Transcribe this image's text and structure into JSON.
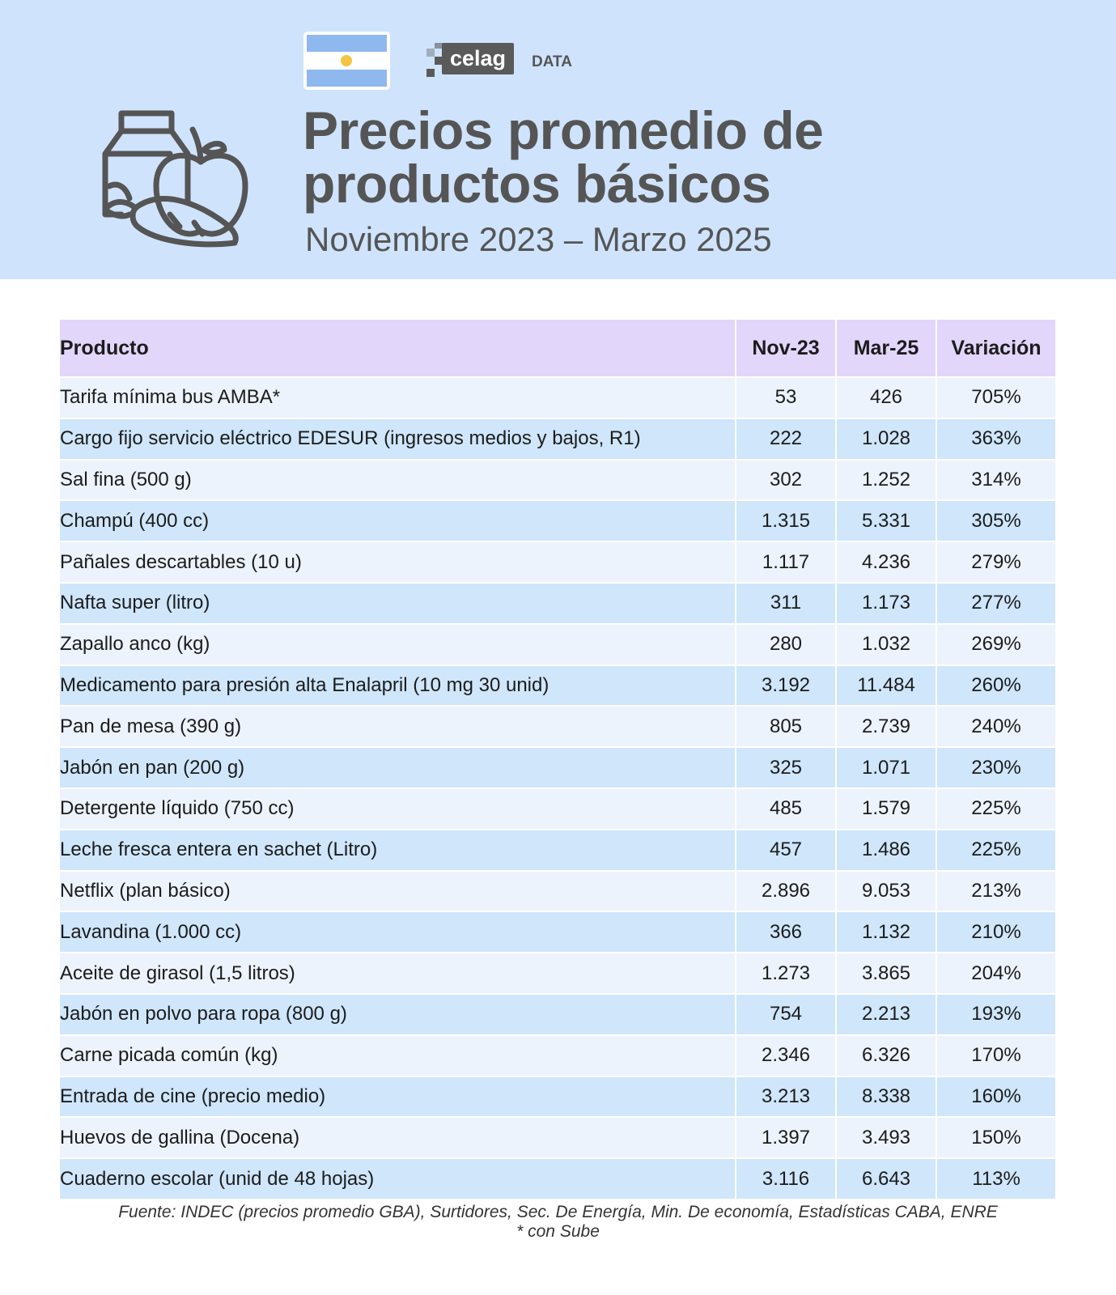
{
  "header": {
    "logo": "celag",
    "logo_suffix": "DATA",
    "title_lines": [
      "Precios promedio de",
      "productos básicos"
    ],
    "subtitle": "Noviembre 2023 – Marzo 2025"
  },
  "table": {
    "columns": [
      "Producto",
      "Nov-23",
      "Mar-25",
      "Variación"
    ],
    "rows": [
      [
        "Tarifa mínima bus AMBA*",
        "53",
        "426",
        "705%"
      ],
      [
        "Cargo fijo servicio eléctrico EDESUR (ingresos medios y bajos, R1)",
        "222",
        "1.028",
        "363%"
      ],
      [
        "Sal fina (500 g)",
        "302",
        "1.252",
        "314%"
      ],
      [
        "Champú (400 cc)",
        "1.315",
        "5.331",
        "305%"
      ],
      [
        "Pañales descartables (10 u)",
        "1.117",
        "4.236",
        "279%"
      ],
      [
        "Nafta super (litro)",
        "311",
        "1.173",
        "277%"
      ],
      [
        "Zapallo anco (kg)",
        "280",
        "1.032",
        "269%"
      ],
      [
        "Medicamento para presión alta Enalapril (10 mg 30 unid)",
        "3.192",
        "11.484",
        "260%"
      ],
      [
        "Pan de mesa (390 g)",
        "805",
        "2.739",
        "240%"
      ],
      [
        "Jabón en pan (200 g)",
        "325",
        "1.071",
        "230%"
      ],
      [
        "Detergente líquido (750 cc)",
        "485",
        "1.579",
        "225%"
      ],
      [
        "Leche fresca entera en sachet (Litro)",
        "457",
        "1.486",
        "225%"
      ],
      [
        "Netflix (plan básico)",
        "2.896",
        "9.053",
        "213%"
      ],
      [
        "Lavandina (1.000 cc)",
        "366",
        "1.132",
        "210%"
      ],
      [
        "Aceite de girasol (1,5 litros)",
        "1.273",
        "3.865",
        "204%"
      ],
      [
        "Jabón en polvo para ropa (800 g)",
        "754",
        "2.213",
        "193%"
      ],
      [
        "Carne picada común (kg)",
        "2.346",
        "6.326",
        "170%"
      ],
      [
        "Entrada de cine (precio medio)",
        "3.213",
        "8.338",
        "160%"
      ],
      [
        "Huevos de gallina (Docena)",
        "1.397",
        "3.493",
        "150%"
      ],
      [
        "Cuaderno escolar (unid de 48 hojas)",
        "3.116",
        "6.643",
        "113%"
      ]
    ]
  },
  "footer": {
    "source": "Fuente: INDEC (precios promedio GBA), Surtidores, Sec. De Energía, Min. De economía, Estadísticas CABA, ENRE",
    "note": "* con Sube"
  }
}
